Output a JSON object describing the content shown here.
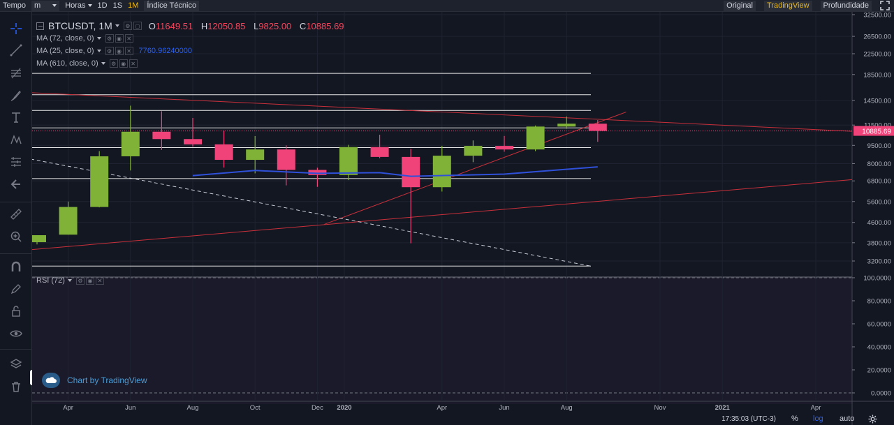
{
  "toolbar": {
    "tempo_label": "Tempo",
    "minute_label": "m",
    "hours_label": "Horas",
    "intervals": [
      "1D",
      "1S",
      "1M"
    ],
    "active_interval": "1M",
    "indicators_label": "Índice Técnico",
    "views": [
      "Original",
      "TradingView",
      "Profundidade"
    ],
    "active_view": "TradingView"
  },
  "legend": {
    "symbol": "BTCUSDT, 1M",
    "o_label": "O",
    "o_value": "11649.51",
    "h_label": "H",
    "h_value": "12050.85",
    "l_label": "L",
    "l_value": "9825.00",
    "c_label": "C",
    "c_value": "10885.69",
    "ma1": "MA (72, close, 0)",
    "ma2": "MA (25, close, 0)",
    "ma2_value": "7760.96240000",
    "ma3": "MA (610, close, 0)",
    "rsi": "RSI (72)"
  },
  "watermark": {
    "text": "Chart by TradingView"
  },
  "status": {
    "time": "17:35:03 (UTC-3)",
    "percent": "%",
    "log": "log",
    "auto": "auto"
  },
  "colors": {
    "up": "#7fb236",
    "down": "#f0437a",
    "ma": "#2f50d8",
    "trend": "#c8303a",
    "accent": "#f0b90b",
    "bg": "#131722"
  },
  "chart_data": {
    "type": "candlestick",
    "scale": "log",
    "price_axis": [
      "32500.00",
      "26500.00",
      "22500.00",
      "18500.00",
      "14500.00",
      "11500.00",
      "9500.00",
      "8000.00",
      "6800.00",
      "5600.00",
      "4600.00",
      "3800.00",
      "3200.00"
    ],
    "price_ticks": [
      32500,
      26500,
      22500,
      18500,
      14500,
      11500,
      9500,
      8000,
      6800,
      5600,
      4600,
      3800,
      3200
    ],
    "last_price_label": "10885.69",
    "last_price": 10885.69,
    "x_labels": [
      "Apr",
      "Jun",
      "Aug",
      "Oct",
      "Dec",
      "2020",
      "Apr",
      "Jun",
      "Aug",
      "Nov",
      "2021",
      "Apr"
    ],
    "candles": [
      {
        "date": "2019-03",
        "o": 3820,
        "h": 4080,
        "l": 3740,
        "c": 4080
      },
      {
        "date": "2019-04",
        "o": 4100,
        "h": 5600,
        "l": 4100,
        "c": 5320
      },
      {
        "date": "2019-05",
        "o": 5320,
        "h": 9000,
        "l": 5300,
        "c": 8570
      },
      {
        "date": "2019-06",
        "o": 8570,
        "h": 13800,
        "l": 7500,
        "c": 10800
      },
      {
        "date": "2019-07",
        "o": 10800,
        "h": 13100,
        "l": 9100,
        "c": 10080
      },
      {
        "date": "2019-08",
        "o": 10080,
        "h": 12300,
        "l": 9400,
        "c": 9590
      },
      {
        "date": "2019-09",
        "o": 9590,
        "h": 10900,
        "l": 7710,
        "c": 8290
      },
      {
        "date": "2019-10",
        "o": 8290,
        "h": 10370,
        "l": 7300,
        "c": 9140
      },
      {
        "date": "2019-11",
        "o": 9140,
        "h": 9500,
        "l": 6520,
        "c": 7540
      },
      {
        "date": "2019-12",
        "o": 7540,
        "h": 7700,
        "l": 6430,
        "c": 7190
      },
      {
        "date": "2020-01",
        "o": 7190,
        "h": 9550,
        "l": 6850,
        "c": 9350
      },
      {
        "date": "2020-02",
        "o": 9350,
        "h": 10500,
        "l": 8420,
        "c": 8520
      },
      {
        "date": "2020-03",
        "o": 8520,
        "h": 9190,
        "l": 3780,
        "c": 6410
      },
      {
        "date": "2020-04",
        "o": 6410,
        "h": 9460,
        "l": 6150,
        "c": 8620
      },
      {
        "date": "2020-05",
        "o": 8620,
        "h": 9950,
        "l": 8110,
        "c": 9450
      },
      {
        "date": "2020-06",
        "o": 9450,
        "h": 10380,
        "l": 8950,
        "c": 9140
      },
      {
        "date": "2020-07",
        "o": 9140,
        "h": 11450,
        "l": 9000,
        "c": 11340
      },
      {
        "date": "2020-08",
        "o": 11340,
        "h": 12470,
        "l": 11100,
        "c": 11650
      },
      {
        "date": "2020-09",
        "o": 11649.51,
        "h": 12050.85,
        "l": 9825.0,
        "c": 10885.69
      }
    ],
    "ma_line": [
      {
        "date": "2019-08",
        "v": 7150
      },
      {
        "date": "2019-10",
        "v": 7500
      },
      {
        "date": "2019-12",
        "v": 7300
      },
      {
        "date": "2020-02",
        "v": 7350
      },
      {
        "date": "2020-03",
        "v": 7100
      },
      {
        "date": "2020-06",
        "v": 7250
      },
      {
        "date": "2020-09",
        "v": 7760
      }
    ],
    "horizontal_levels": [
      18700,
      15300,
      13200,
      11200,
      9300,
      6950,
      3050
    ],
    "rsi_axis": [
      "100.0000",
      "80.0000",
      "60.0000",
      "40.0000",
      "20.0000",
      "0.0000"
    ],
    "rsi_ticks": [
      100,
      80,
      60,
      40,
      20,
      0
    ]
  }
}
